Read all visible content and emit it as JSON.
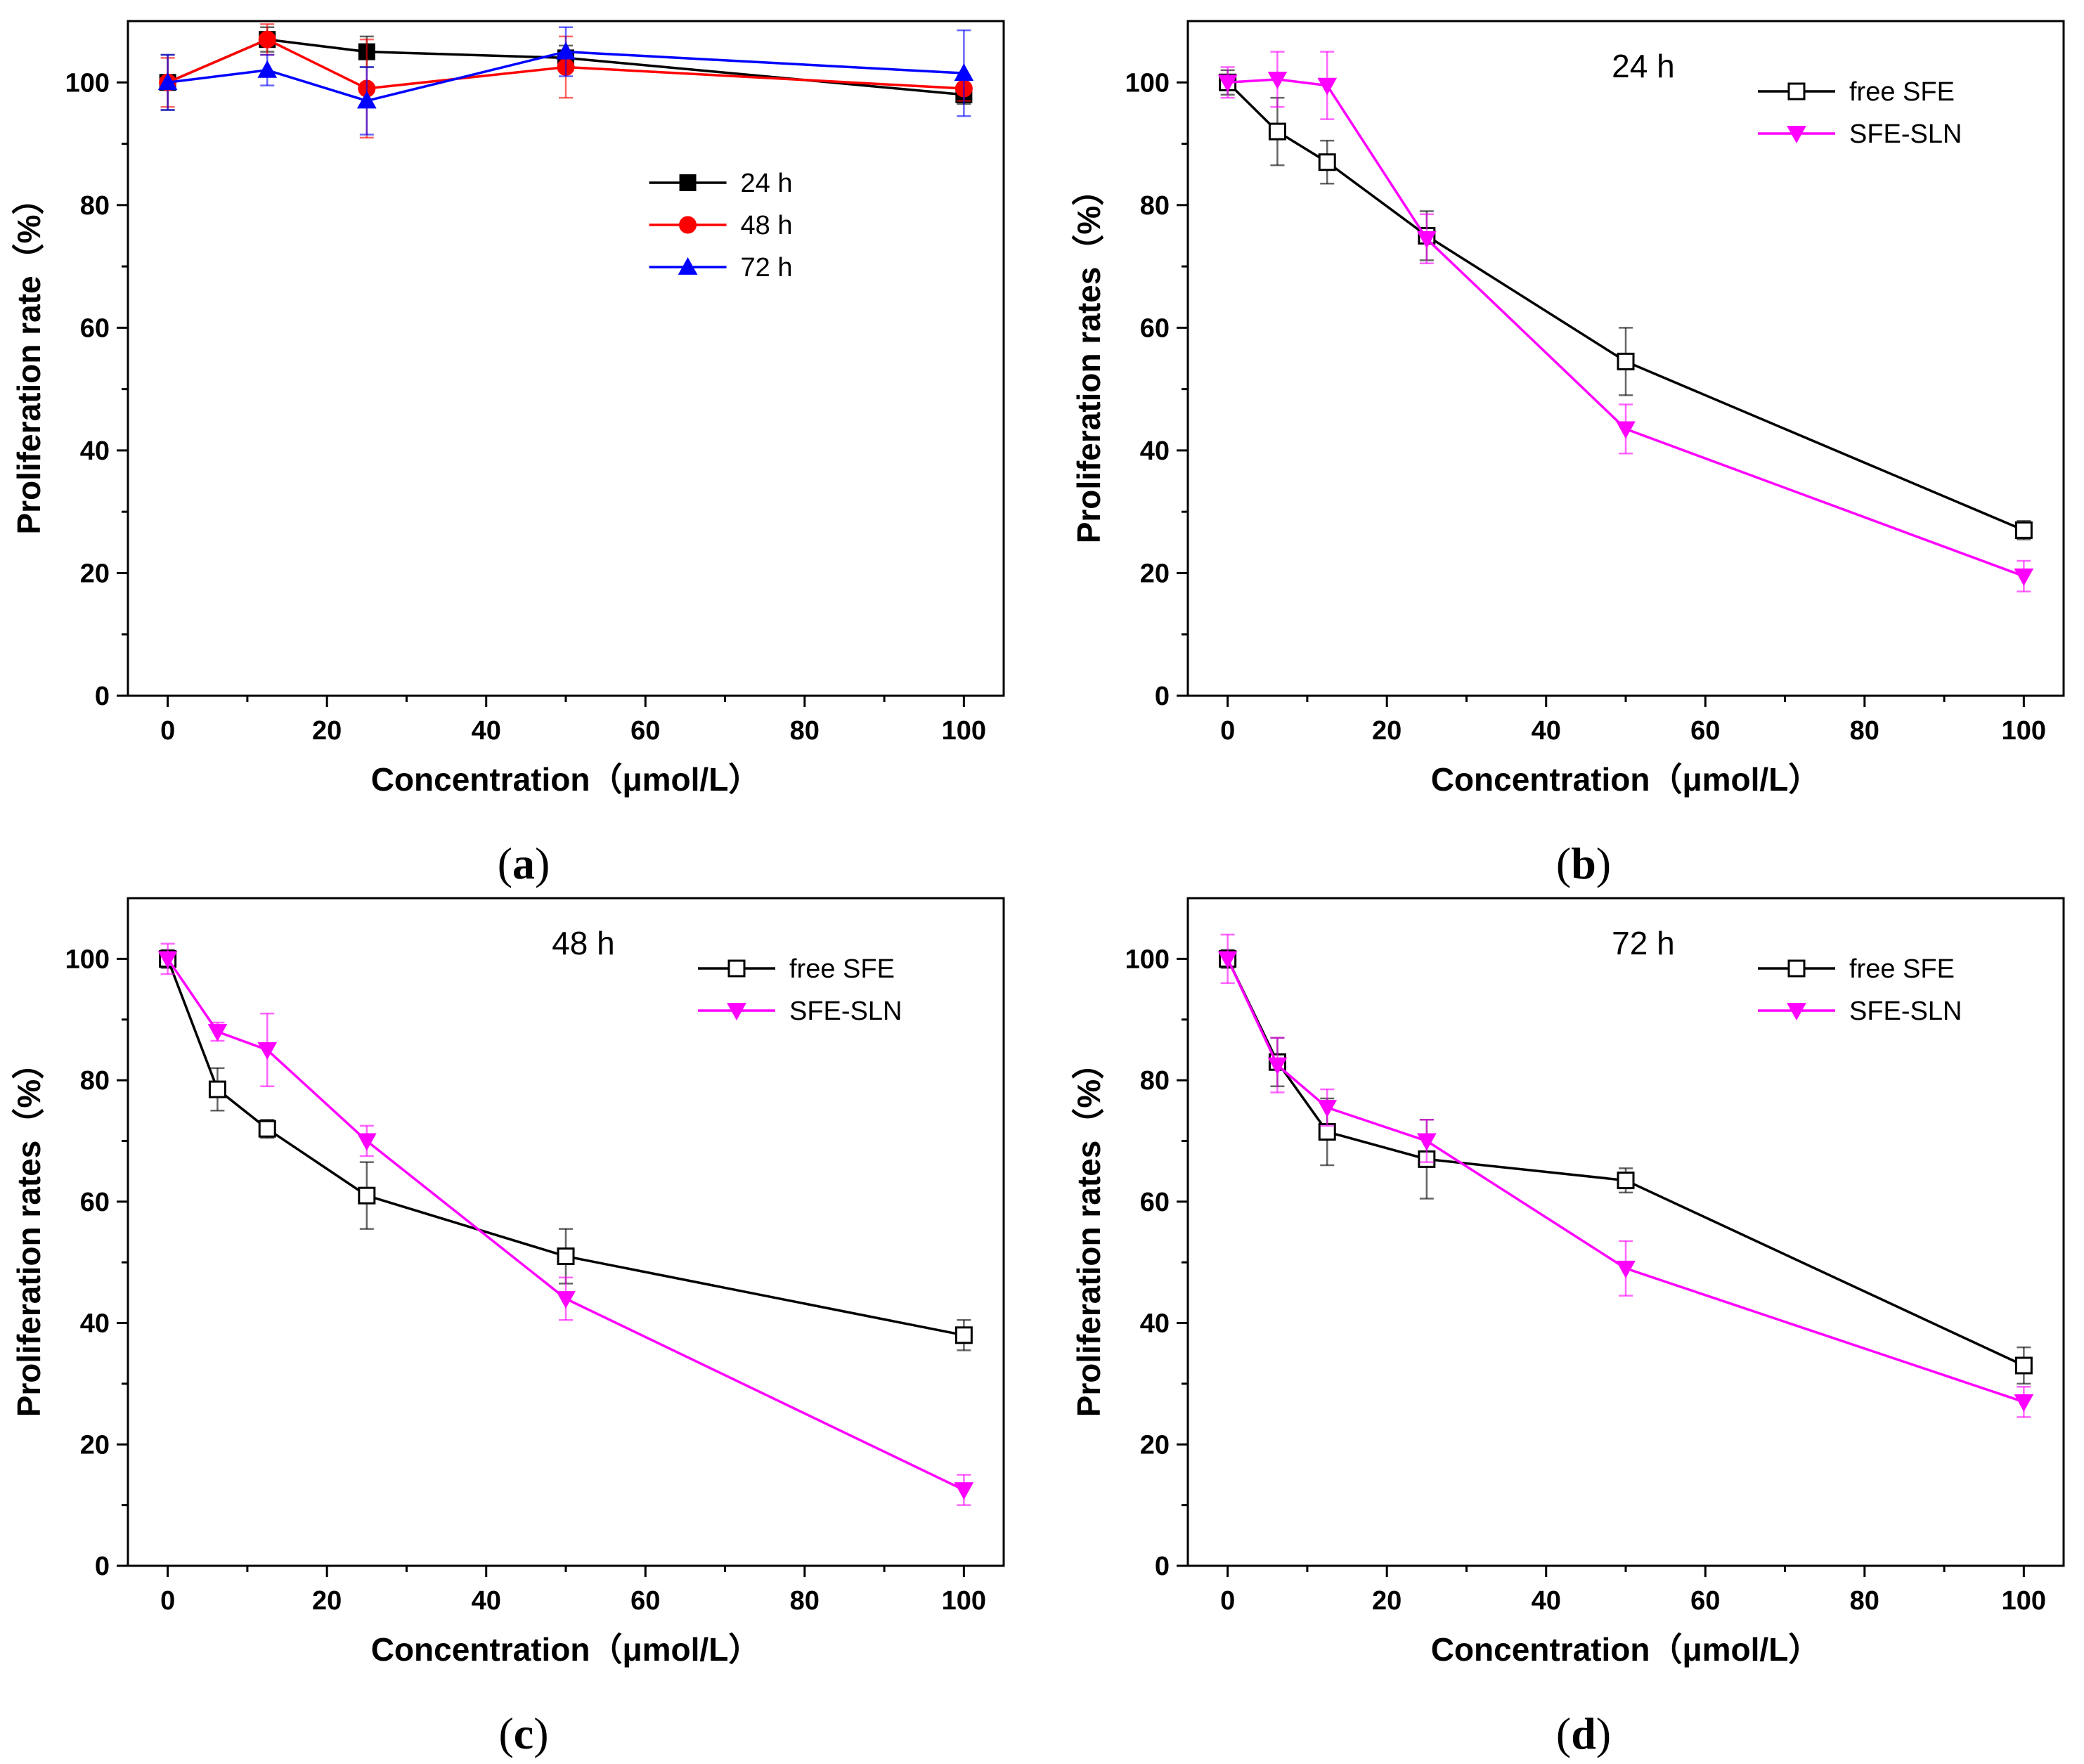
{
  "chart_data": [
    {
      "type": "line",
      "panel": "a",
      "caption_open": "(",
      "caption_letter": "a",
      "caption_close": ")",
      "title": "",
      "xlabel": "Concentration（μmol/L）",
      "ylabel": "Proliferation rate（%）",
      "xlim": [
        -5,
        105
      ],
      "ylim": [
        0,
        110
      ],
      "xticks": [
        0,
        20,
        40,
        60,
        80,
        100
      ],
      "yticks": [
        0,
        20,
        40,
        60,
        80,
        100
      ],
      "legend_position": "center-right",
      "series": [
        {
          "name": "24 h",
          "color": "#000000",
          "marker": "square-filled",
          "x": [
            0,
            12.5,
            25,
            50,
            100
          ],
          "y": [
            100,
            107,
            105,
            104,
            98
          ],
          "err": [
            4.5,
            2,
            2.5,
            2,
            1.5
          ]
        },
        {
          "name": "48 h",
          "color": "#ff0000",
          "marker": "circle-filled",
          "x": [
            0,
            12.5,
            25,
            50,
            100
          ],
          "y": [
            100,
            107,
            99,
            102.5,
            99
          ],
          "err": [
            4,
            2.5,
            8,
            5,
            2
          ]
        },
        {
          "name": "72 h",
          "color": "#0000ff",
          "marker": "triangle-up-filled",
          "x": [
            0,
            12.5,
            25,
            50,
            100
          ],
          "y": [
            100,
            102,
            97,
            105,
            101.5
          ],
          "err": [
            4.5,
            2.5,
            5.5,
            4,
            7
          ]
        }
      ]
    },
    {
      "type": "line",
      "panel": "b",
      "caption_open": "(",
      "caption_letter": "b",
      "caption_close": ")",
      "title": "24 h",
      "xlabel": "Concentration（μmol/L）",
      "ylabel": "Proliferation rates（%）",
      "xlim": [
        -5,
        105
      ],
      "ylim": [
        0,
        110
      ],
      "xticks": [
        0,
        20,
        40,
        60,
        80,
        100
      ],
      "yticks": [
        0,
        20,
        40,
        60,
        80,
        100
      ],
      "legend_position": "top-right",
      "series": [
        {
          "name": "free SFE",
          "color": "#000000",
          "marker": "square-open",
          "x": [
            0,
            6.25,
            12.5,
            25,
            50,
            100
          ],
          "y": [
            100,
            92,
            87,
            75,
            54.5,
            27
          ],
          "err": [
            2,
            5.5,
            3.5,
            4,
            5.5,
            1.5
          ]
        },
        {
          "name": "SFE-SLN",
          "color": "#ff00ff",
          "marker": "triangle-down-filled",
          "x": [
            0,
            6.25,
            12.5,
            25,
            50,
            100
          ],
          "y": [
            100,
            100.5,
            99.5,
            74.5,
            43.5,
            19.5
          ],
          "err": [
            2.5,
            4.5,
            5.5,
            4,
            4,
            2.5
          ]
        }
      ]
    },
    {
      "type": "line",
      "panel": "c",
      "caption_open": "(",
      "caption_letter": "c",
      "caption_close": ")",
      "title": "48 h",
      "xlabel": "Concentration（μmol/L）",
      "ylabel": "Proliferation rates（%）",
      "xlim": [
        -5,
        105
      ],
      "ylim": [
        0,
        110
      ],
      "xticks": [
        0,
        20,
        40,
        60,
        80,
        100
      ],
      "yticks": [
        0,
        20,
        40,
        60,
        80,
        100
      ],
      "legend_position": "top-right",
      "series": [
        {
          "name": "free SFE",
          "color": "#000000",
          "marker": "square-open",
          "x": [
            0,
            6.25,
            12.5,
            25,
            50,
            100
          ],
          "y": [
            100,
            78.5,
            72,
            61,
            51,
            38
          ],
          "err": [
            1.5,
            3.5,
            1.5,
            5.5,
            4.5,
            2.5
          ]
        },
        {
          "name": "SFE-SLN",
          "color": "#ff00ff",
          "marker": "triangle-down-filled",
          "x": [
            0,
            6.25,
            12.5,
            25,
            50,
            100
          ],
          "y": [
            100,
            88,
            85,
            70,
            44,
            12.5
          ],
          "err": [
            2.5,
            1.5,
            6,
            2.5,
            3.5,
            2.5
          ]
        }
      ]
    },
    {
      "type": "line",
      "panel": "d",
      "caption_open": "(",
      "caption_letter": "d",
      "caption_close": ")",
      "title": "72 h",
      "xlabel": "Concentration（μmol/L）",
      "ylabel": "Proliferation rates（%）",
      "xlim": [
        -5,
        105
      ],
      "ylim": [
        0,
        110
      ],
      "xticks": [
        0,
        20,
        40,
        60,
        80,
        100
      ],
      "yticks": [
        0,
        20,
        40,
        60,
        80,
        100
      ],
      "legend_position": "top-right",
      "series": [
        {
          "name": "free SFE",
          "color": "#000000",
          "marker": "square-open",
          "x": [
            0,
            6.25,
            12.5,
            25,
            50,
            100
          ],
          "y": [
            100,
            83,
            71.5,
            67,
            63.5,
            33
          ],
          "err": [
            1.5,
            4,
            5.5,
            6.5,
            2,
            3
          ]
        },
        {
          "name": "SFE-SLN",
          "color": "#ff00ff",
          "marker": "triangle-down-filled",
          "x": [
            0,
            6.25,
            12.5,
            25,
            50,
            100
          ],
          "y": [
            100,
            82.5,
            75.5,
            70,
            49,
            27
          ],
          "err": [
            4,
            4.5,
            3,
            3.5,
            4.5,
            2.5
          ]
        }
      ]
    }
  ]
}
